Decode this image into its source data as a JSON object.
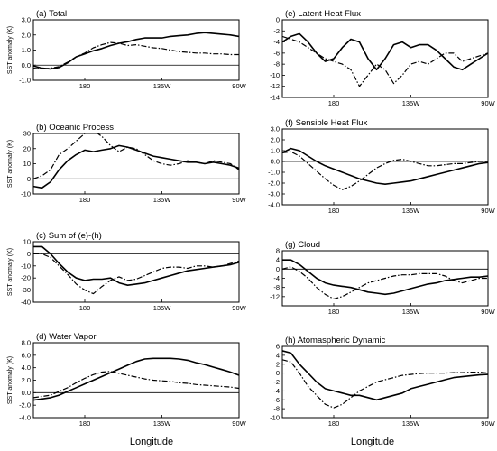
{
  "figure": {
    "xlabel": "Longitude",
    "ylabel": "SST anomaly (K)"
  },
  "chart_data": [
    {
      "id": "a",
      "type": "line",
      "title": "(a) Total",
      "ylabel": "SST anomaly (K)",
      "xlabel": "",
      "xlim": [
        150,
        270
      ],
      "xticks": [
        180,
        225,
        270
      ],
      "xtick_labels": [
        "180",
        "135W",
        "90W"
      ],
      "ylim": [
        -1.0,
        3.0
      ],
      "yticks": [
        -1.0,
        0.0,
        1.0,
        2.0,
        3.0
      ],
      "ytick_labels": [
        "-1.0",
        "0.0",
        "1.0",
        "2.0",
        "3.0"
      ],
      "zero_line": 0,
      "x": [
        150,
        155,
        160,
        165,
        170,
        175,
        180,
        185,
        190,
        195,
        200,
        205,
        210,
        215,
        220,
        225,
        230,
        235,
        240,
        245,
        250,
        255,
        260,
        265,
        270
      ],
      "series": [
        {
          "style": "solid",
          "values": [
            -0.05,
            -0.2,
            -0.25,
            -0.15,
            0.15,
            0.55,
            0.75,
            0.95,
            1.1,
            1.3,
            1.45,
            1.55,
            1.7,
            1.8,
            1.8,
            1.8,
            1.9,
            1.95,
            2.0,
            2.1,
            2.15,
            2.1,
            2.05,
            2.0,
            1.9
          ]
        },
        {
          "style": "dashdot",
          "values": [
            -0.2,
            -0.25,
            -0.2,
            -0.1,
            0.2,
            0.55,
            0.8,
            1.15,
            1.35,
            1.5,
            1.45,
            1.3,
            1.35,
            1.25,
            1.15,
            1.1,
            1.0,
            0.9,
            0.85,
            0.8,
            0.8,
            0.75,
            0.75,
            0.7,
            0.7
          ]
        }
      ]
    },
    {
      "id": "b",
      "type": "line",
      "title": "(b) Oceanic Process",
      "ylabel": "SST anomaly (K)",
      "xlabel": "",
      "xlim": [
        150,
        270
      ],
      "xticks": [
        180,
        225,
        270
      ],
      "xtick_labels": [
        "180",
        "135W",
        "90W"
      ],
      "ylim": [
        -10,
        30
      ],
      "yticks": [
        -10,
        0,
        10,
        20,
        30
      ],
      "ytick_labels": [
        "-10",
        "0",
        "10",
        "20",
        "30"
      ],
      "zero_line": 0,
      "x": [
        150,
        155,
        160,
        165,
        170,
        175,
        180,
        185,
        190,
        195,
        200,
        205,
        210,
        215,
        220,
        225,
        230,
        235,
        240,
        245,
        250,
        255,
        260,
        265,
        270
      ],
      "series": [
        {
          "style": "solid",
          "values": [
            -5,
            -6,
            -2,
            6,
            12,
            16,
            19,
            18,
            19,
            20,
            22,
            21,
            19,
            17,
            15,
            14,
            13,
            12,
            11,
            11,
            10,
            11,
            10,
            9,
            7
          ]
        },
        {
          "style": "dashdot",
          "values": [
            0,
            2,
            6,
            16,
            20,
            25,
            30,
            32,
            28,
            22,
            18,
            21,
            20,
            16,
            12,
            10,
            9,
            10,
            12,
            11,
            10,
            12,
            11,
            10,
            6
          ]
        }
      ]
    },
    {
      "id": "c",
      "type": "line",
      "title": "(c) Sum of (e)-(h)",
      "ylabel": "SST anomaly (K)",
      "xlabel": "",
      "xlim": [
        150,
        270
      ],
      "xticks": [
        180,
        225,
        270
      ],
      "xtick_labels": [
        "180",
        "135W",
        "90W"
      ],
      "ylim": [
        -40,
        10
      ],
      "yticks": [
        -40,
        -30,
        -20,
        -10,
        0,
        10
      ],
      "ytick_labels": [
        "-40",
        "-30",
        "-20",
        "-10",
        "0",
        "10"
      ],
      "zero_line": 0,
      "x": [
        150,
        155,
        160,
        165,
        170,
        175,
        180,
        185,
        190,
        195,
        200,
        205,
        210,
        215,
        220,
        225,
        230,
        235,
        240,
        245,
        250,
        255,
        260,
        265,
        270
      ],
      "series": [
        {
          "style": "solid",
          "values": [
            6,
            6,
            0,
            -8,
            -15,
            -20,
            -22,
            -21,
            -21,
            -20,
            -24,
            -26,
            -25,
            -24,
            -22,
            -20,
            -18,
            -16,
            -14,
            -13,
            -12,
            -11,
            -10,
            -9,
            -7
          ]
        },
        {
          "style": "dashdot",
          "values": [
            0,
            0,
            -3,
            -10,
            -17,
            -25,
            -30,
            -33,
            -27,
            -22,
            -19,
            -22,
            -21,
            -18,
            -15,
            -12,
            -11,
            -11,
            -12,
            -10,
            -10,
            -11,
            -10,
            -8,
            -6
          ]
        }
      ]
    },
    {
      "id": "d",
      "type": "line",
      "title": "(d) Water Vapor",
      "ylabel": "SST anomaly (K)",
      "xlabel": "",
      "xlim": [
        150,
        270
      ],
      "xticks": [
        180,
        225,
        270
      ],
      "xtick_labels": [
        "180",
        "135W",
        "90W"
      ],
      "ylim": [
        -4.0,
        8.0
      ],
      "yticks": [
        -4.0,
        -2.0,
        0.0,
        2.0,
        4.0,
        6.0,
        8.0
      ],
      "ytick_labels": [
        "-4.0",
        "-2.0",
        "0.0",
        "2.0",
        "4.0",
        "6.0",
        "8.0"
      ],
      "zero_line": 0,
      "x": [
        150,
        155,
        160,
        165,
        170,
        175,
        180,
        185,
        190,
        195,
        200,
        205,
        210,
        215,
        220,
        225,
        230,
        235,
        240,
        245,
        250,
        255,
        260,
        265,
        270
      ],
      "series": [
        {
          "style": "solid",
          "values": [
            -1.2,
            -1.0,
            -0.8,
            -0.4,
            0.2,
            0.8,
            1.4,
            2.0,
            2.6,
            3.2,
            3.8,
            4.4,
            5.0,
            5.4,
            5.5,
            5.5,
            5.5,
            5.4,
            5.2,
            4.8,
            4.5,
            4.1,
            3.7,
            3.3,
            2.8
          ]
        },
        {
          "style": "dashdot",
          "values": [
            -0.8,
            -0.6,
            -0.4,
            0.2,
            0.8,
            1.6,
            2.3,
            2.9,
            3.3,
            3.4,
            3.1,
            2.8,
            2.5,
            2.2,
            2.0,
            1.9,
            1.8,
            1.6,
            1.5,
            1.3,
            1.2,
            1.1,
            1.0,
            0.9,
            0.7
          ]
        }
      ]
    },
    {
      "id": "e",
      "type": "line",
      "title": "(e) Latent Heat Flux",
      "ylabel": "",
      "xlabel": "",
      "xlim": [
        150,
        270
      ],
      "xticks": [
        180,
        225,
        270
      ],
      "xtick_labels": [
        "180",
        "135W",
        "90W"
      ],
      "ylim": [
        -14,
        0
      ],
      "yticks": [
        -14,
        -12,
        -10,
        -8,
        -6,
        -4,
        -2,
        0
      ],
      "ytick_labels": [
        "-14",
        "-12",
        "-10",
        "-8",
        "-6",
        "-4",
        "-2",
        "0"
      ],
      "zero_line": null,
      "x": [
        150,
        155,
        160,
        165,
        170,
        175,
        180,
        185,
        190,
        195,
        200,
        205,
        210,
        215,
        220,
        225,
        230,
        235,
        240,
        245,
        250,
        255,
        260,
        265,
        270
      ],
      "series": [
        {
          "style": "solid",
          "values": [
            -4,
            -3,
            -2.5,
            -4,
            -6,
            -7.5,
            -7,
            -5,
            -3.5,
            -4,
            -7,
            -9,
            -7,
            -4.5,
            -4,
            -5,
            -4.5,
            -4.5,
            -5.5,
            -7,
            -8.5,
            -9,
            -8,
            -7,
            -6
          ]
        },
        {
          "style": "dashdot",
          "values": [
            -3,
            -3.5,
            -4,
            -5,
            -6,
            -7,
            -7.5,
            -8,
            -9,
            -12,
            -10,
            -8,
            -9,
            -11.5,
            -10,
            -8,
            -7.5,
            -8,
            -7,
            -6,
            -6,
            -7.5,
            -7,
            -6.5,
            -6
          ]
        }
      ]
    },
    {
      "id": "f",
      "type": "line",
      "title": "(f) Sensible Heat Flux",
      "ylabel": "",
      "xlabel": "",
      "xlim": [
        150,
        270
      ],
      "xticks": [
        180,
        225,
        270
      ],
      "xtick_labels": [
        "180",
        "135W",
        "90W"
      ],
      "ylim": [
        -4.0,
        3.0
      ],
      "yticks": [
        -4.0,
        -3.0,
        -2.0,
        -1.0,
        0.0,
        1.0,
        2.0,
        3.0
      ],
      "ytick_labels": [
        "-4.0",
        "-3.0",
        "-2.0",
        "-1.0",
        "0.0",
        "1.0",
        "2.0",
        "3.0"
      ],
      "zero_line": 0,
      "x": [
        150,
        155,
        160,
        165,
        170,
        175,
        180,
        185,
        190,
        195,
        200,
        205,
        210,
        215,
        220,
        225,
        230,
        235,
        240,
        245,
        250,
        255,
        260,
        265,
        270
      ],
      "series": [
        {
          "style": "solid",
          "values": [
            0.8,
            1.2,
            1.0,
            0.5,
            0.0,
            -0.4,
            -0.7,
            -1.0,
            -1.3,
            -1.6,
            -1.8,
            -2.0,
            -2.1,
            -2.0,
            -1.9,
            -1.8,
            -1.6,
            -1.4,
            -1.2,
            -1.0,
            -0.8,
            -0.6,
            -0.4,
            -0.2,
            -0.1
          ]
        },
        {
          "style": "dashdot",
          "values": [
            0.8,
            0.9,
            0.5,
            -0.2,
            -0.9,
            -1.6,
            -2.2,
            -2.6,
            -2.3,
            -1.8,
            -1.2,
            -0.6,
            -0.2,
            0.1,
            0.2,
            0.0,
            -0.2,
            -0.4,
            -0.4,
            -0.3,
            -0.2,
            -0.2,
            -0.1,
            0.0,
            0.0
          ]
        }
      ]
    },
    {
      "id": "g",
      "type": "line",
      "title": "(g) Cloud",
      "ylabel": "",
      "xlabel": "",
      "xlim": [
        150,
        270
      ],
      "xticks": [
        180,
        225,
        270
      ],
      "xtick_labels": [
        "180",
        "135W",
        "90W"
      ],
      "ylim": [
        -16,
        8
      ],
      "yticks": [
        -12,
        -8,
        -4,
        0,
        4,
        8
      ],
      "ytick_labels": [
        "-12",
        "-8",
        "-4",
        "0",
        "4",
        "8"
      ],
      "zero_line": 0,
      "x": [
        150,
        155,
        160,
        165,
        170,
        175,
        180,
        185,
        190,
        195,
        200,
        205,
        210,
        215,
        220,
        225,
        230,
        235,
        240,
        245,
        250,
        255,
        260,
        265,
        270
      ],
      "series": [
        {
          "style": "solid",
          "values": [
            4,
            4,
            2,
            -1,
            -4,
            -6,
            -7,
            -7.5,
            -8,
            -9,
            -10,
            -10.5,
            -11,
            -10.5,
            -9.5,
            -8.5,
            -7.5,
            -6.5,
            -6,
            -5,
            -4.5,
            -4,
            -3.5,
            -3.5,
            -3
          ]
        },
        {
          "style": "dashdot",
          "values": [
            0,
            1,
            -1,
            -4,
            -8,
            -11,
            -13,
            -12,
            -10,
            -8,
            -6,
            -5,
            -4,
            -3,
            -2.5,
            -2.5,
            -2,
            -2,
            -2,
            -3,
            -5,
            -6,
            -5,
            -4,
            -4
          ]
        }
      ]
    },
    {
      "id": "h",
      "type": "line",
      "title": "(h) Atomaspheric Dynamic",
      "ylabel": "",
      "xlabel": "",
      "xlim": [
        150,
        270
      ],
      "xticks": [
        180,
        225,
        270
      ],
      "xtick_labels": [
        "180",
        "135W",
        "90W"
      ],
      "ylim": [
        -10,
        6
      ],
      "yticks": [
        -10,
        -8,
        -6,
        -4,
        -2,
        0,
        2,
        4,
        6
      ],
      "ytick_labels": [
        "-10",
        "-8",
        "-6",
        "-4",
        "-2",
        "0",
        "2",
        "4",
        "6"
      ],
      "zero_line": 0,
      "x": [
        150,
        155,
        160,
        165,
        170,
        175,
        180,
        185,
        190,
        195,
        200,
        205,
        210,
        215,
        220,
        225,
        230,
        235,
        240,
        245,
        250,
        255,
        260,
        265,
        270
      ],
      "series": [
        {
          "style": "solid",
          "values": [
            5,
            4.5,
            2,
            0,
            -2,
            -3.5,
            -4,
            -4.5,
            -5,
            -5,
            -5.5,
            -6,
            -5.5,
            -5,
            -4.5,
            -3.5,
            -3,
            -2.5,
            -2,
            -1.5,
            -1,
            -0.8,
            -0.6,
            -0.4,
            -0.3
          ]
        },
        {
          "style": "dashdot",
          "values": [
            3,
            2.5,
            0,
            -3,
            -5,
            -7,
            -7.8,
            -7,
            -5.5,
            -4,
            -3,
            -2,
            -1.5,
            -1,
            -0.5,
            -0.3,
            -0.1,
            0,
            0,
            0,
            0.1,
            0.1,
            0.2,
            0.2,
            0
          ]
        }
      ]
    }
  ]
}
